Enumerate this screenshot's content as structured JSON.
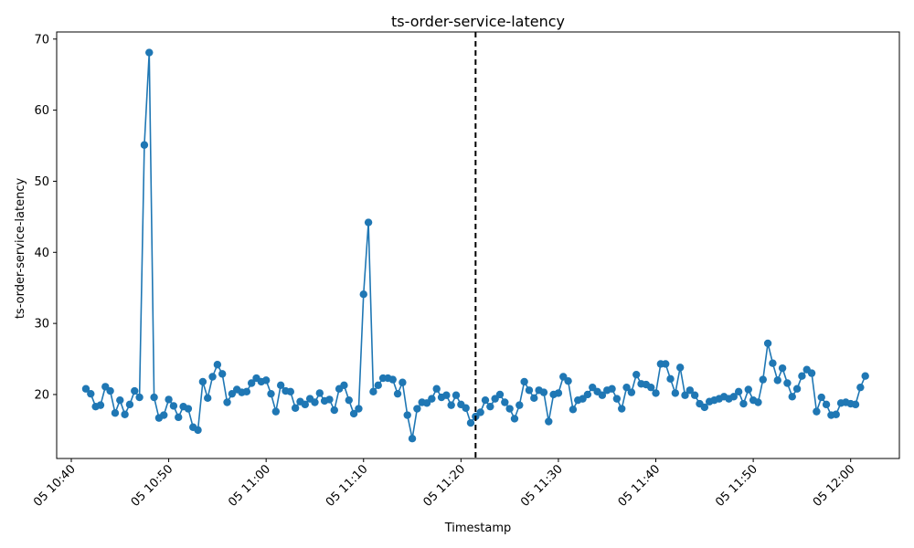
{
  "chart_data": {
    "type": "line",
    "title": "ts-order-service-latency",
    "xlabel": "Timestamp",
    "ylabel": "ts-order-service-latency",
    "ylim": [
      11,
      71
    ],
    "xlim": [
      "05 10:38:30",
      "05 12:05:00"
    ],
    "yticks": [
      20,
      30,
      40,
      50,
      60,
      70
    ],
    "xticks": [
      "05 10:40",
      "05 10:50",
      "05 11:00",
      "05 11:10",
      "05 11:20",
      "05 11:30",
      "05 11:40",
      "05 11:50",
      "05 12:00"
    ],
    "grid": false,
    "line_color": "#1f77b4",
    "marker": "circle",
    "vline": {
      "x": "05 11:21:30",
      "style": "dashed",
      "color": "#000000"
    },
    "series": [
      {
        "x": [
          "05 10:41:30",
          "05 10:42:00",
          "05 10:42:30",
          "05 10:43:00",
          "05 10:43:30",
          "05 10:44:00",
          "05 10:44:30",
          "05 10:45:00",
          "05 10:45:30",
          "05 10:46:00",
          "05 10:46:30",
          "05 10:47:00",
          "05 10:47:30",
          "05 10:48:00",
          "05 10:48:30",
          "05 10:49:00",
          "05 10:49:30",
          "05 10:50:00",
          "05 10:50:30",
          "05 10:51:00",
          "05 10:51:30",
          "05 10:52:00",
          "05 10:52:30",
          "05 10:53:00",
          "05 10:53:30",
          "05 10:54:00",
          "05 10:54:30",
          "05 10:55:00",
          "05 10:55:30",
          "05 10:56:00",
          "05 10:56:30",
          "05 10:57:00",
          "05 10:57:30",
          "05 10:58:00",
          "05 10:58:30",
          "05 10:59:00",
          "05 10:59:30",
          "05 11:00:00",
          "05 11:00:30",
          "05 11:01:00",
          "05 11:01:30",
          "05 11:02:00",
          "05 11:02:30",
          "05 11:03:00",
          "05 11:03:30",
          "05 11:04:00",
          "05 11:04:30",
          "05 11:05:00",
          "05 11:05:30",
          "05 11:06:00",
          "05 11:06:30",
          "05 11:07:00",
          "05 11:07:30",
          "05 11:08:00",
          "05 11:08:30",
          "05 11:09:00",
          "05 11:09:30",
          "05 11:10:00",
          "05 11:10:30",
          "05 11:11:00",
          "05 11:11:30",
          "05 11:12:00",
          "05 11:12:30",
          "05 11:13:00",
          "05 11:13:30",
          "05 11:14:00",
          "05 11:14:30",
          "05 11:15:00",
          "05 11:15:30",
          "05 11:16:00",
          "05 11:16:30",
          "05 11:17:00",
          "05 11:17:30",
          "05 11:18:00",
          "05 11:18:30",
          "05 11:19:00",
          "05 11:19:30",
          "05 11:20:00",
          "05 11:20:30",
          "05 11:21:00",
          "05 11:21:30",
          "05 11:22:00",
          "05 11:22:30",
          "05 11:23:00",
          "05 11:23:30",
          "05 11:24:00",
          "05 11:24:30",
          "05 11:25:00",
          "05 11:25:30",
          "05 11:26:00",
          "05 11:26:30",
          "05 11:27:00",
          "05 11:27:30",
          "05 11:28:00",
          "05 11:28:30",
          "05 11:29:00",
          "05 11:29:30",
          "05 11:30:00",
          "05 11:30:30",
          "05 11:31:00",
          "05 11:31:30",
          "05 11:32:00",
          "05 11:32:30",
          "05 11:33:00",
          "05 11:33:30",
          "05 11:34:00",
          "05 11:34:30",
          "05 11:35:00",
          "05 11:35:30",
          "05 11:36:00",
          "05 11:36:30",
          "05 11:37:00",
          "05 11:37:30",
          "05 11:38:00",
          "05 11:38:30",
          "05 11:39:00",
          "05 11:39:30",
          "05 11:40:00",
          "05 11:40:30",
          "05 11:41:00",
          "05 11:41:30",
          "05 11:42:00",
          "05 11:42:30",
          "05 11:43:00",
          "05 11:43:30",
          "05 11:44:00",
          "05 11:44:30",
          "05 11:45:00",
          "05 11:45:30",
          "05 11:46:00",
          "05 11:46:30",
          "05 11:47:00",
          "05 11:47:30",
          "05 11:48:00",
          "05 11:48:30",
          "05 11:49:00",
          "05 11:49:30",
          "05 11:50:00",
          "05 11:50:30",
          "05 11:51:00",
          "05 11:51:30",
          "05 11:52:00",
          "05 11:52:30",
          "05 11:53:00",
          "05 11:53:30",
          "05 11:54:00",
          "05 11:54:30",
          "05 11:55:00",
          "05 11:55:30",
          "05 11:56:00",
          "05 11:56:30",
          "05 11:57:00",
          "05 11:57:30",
          "05 11:58:00",
          "05 11:58:30",
          "05 11:59:00",
          "05 11:59:30",
          "05 12:00:00",
          "05 12:00:30",
          "05 12:01:00",
          "05 12:01:30"
        ],
        "values": [
          20.8,
          20.1,
          18.3,
          18.5,
          21.1,
          20.5,
          17.4,
          19.2,
          17.2,
          18.6,
          20.5,
          19.6,
          55.1,
          68.1,
          19.6,
          16.7,
          17.1,
          19.3,
          18.4,
          16.8,
          18.3,
          18.0,
          15.4,
          15.0,
          21.8,
          19.5,
          22.5,
          24.2,
          22.9,
          18.9,
          20.1,
          20.7,
          20.3,
          20.4,
          21.6,
          22.3,
          21.8,
          22.0,
          20.1,
          17.6,
          21.3,
          20.5,
          20.4,
          18.1,
          19.0,
          18.6,
          19.4,
          18.9,
          20.2,
          19.1,
          19.3,
          17.8,
          20.8,
          21.3,
          19.2,
          17.3,
          18.0,
          34.1,
          44.2,
          20.4,
          21.3,
          22.3,
          22.3,
          22.1,
          20.1,
          21.7,
          17.1,
          13.8,
          18.0,
          18.9,
          18.8,
          19.4,
          20.8,
          19.6,
          19.9,
          18.5,
          19.9,
          18.6,
          18.1,
          16.0,
          16.9,
          17.5,
          19.2,
          18.3,
          19.4,
          20.0,
          18.9,
          18.0,
          16.6,
          18.5,
          21.8,
          20.6,
          19.5,
          20.6,
          20.3,
          16.2,
          20.0,
          20.2,
          22.5,
          21.9,
          17.9,
          19.2,
          19.4,
          20.0,
          21.0,
          20.4,
          19.9,
          20.6,
          20.8,
          19.4,
          18.0,
          21.0,
          20.3,
          22.8,
          21.5,
          21.4,
          21.0,
          20.2,
          24.3,
          24.3,
          22.2,
          20.2,
          23.8,
          19.9,
          20.6,
          19.9,
          18.7,
          18.2,
          19.0,
          19.2,
          19.4,
          19.7,
          19.4,
          19.7,
          20.4,
          18.7,
          20.7,
          19.2,
          18.9,
          22.1,
          27.2,
          24.4,
          22.0,
          23.7,
          21.6,
          19.7,
          20.8,
          22.6,
          23.5,
          23.0,
          17.6,
          19.6,
          18.6,
          17.1,
          17.2,
          18.8,
          18.9,
          18.7,
          18.6,
          21.0,
          22.6
        ]
      }
    ]
  }
}
